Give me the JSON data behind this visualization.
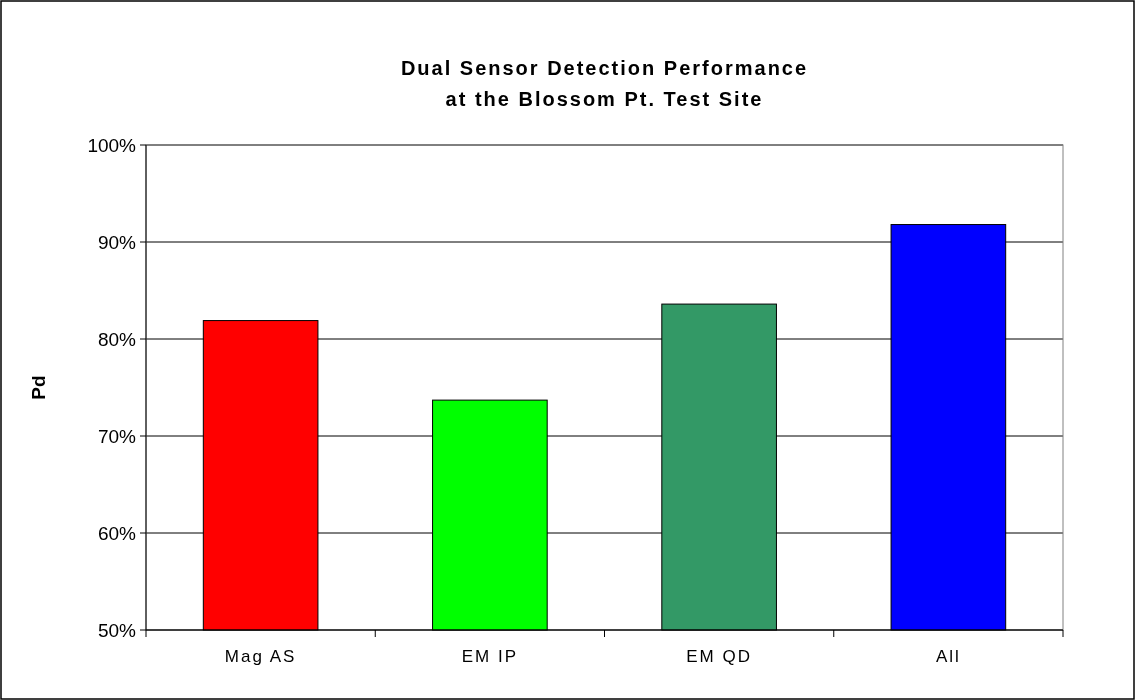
{
  "chart_data": {
    "type": "bar",
    "title": "Dual Sensor Detection Performance\nat the Blossom Pt. Test Site",
    "ylabel": "Pd",
    "categories": [
      "Mag AS",
      "EM IP",
      "EM QD",
      "All"
    ],
    "values": [
      81.9,
      73.7,
      83.6,
      91.8
    ],
    "colors": [
      "#ff0000",
      "#00ff00",
      "#339966",
      "#0000ff"
    ],
    "ylim": [
      50,
      100
    ],
    "yticks": [
      {
        "value": 50,
        "label": "50%"
      },
      {
        "value": 60,
        "label": "60%"
      },
      {
        "value": 70,
        "label": "70%"
      },
      {
        "value": 80,
        "label": "80%"
      },
      {
        "value": 90,
        "label": "90%"
      },
      {
        "value": 100,
        "label": "100%"
      }
    ],
    "grid": "y"
  }
}
